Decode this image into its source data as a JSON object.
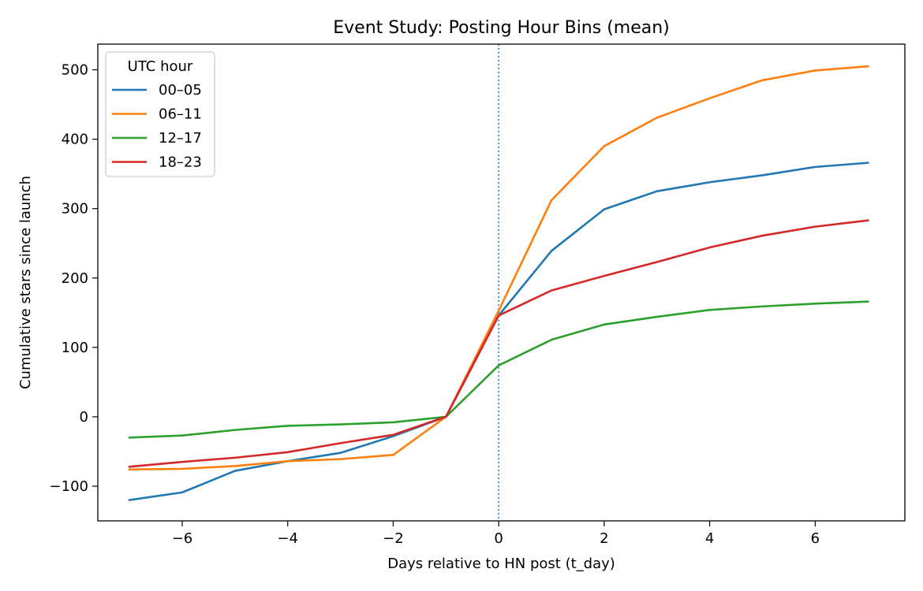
{
  "chart_data": {
    "type": "line",
    "title": "Event Study: Posting Hour Bins (mean)",
    "xlabel": "Days relative to HN post (t_day)",
    "ylabel": "Cumulative stars since launch",
    "xlim": [
      -7.6,
      7.7
    ],
    "ylim": [
      -150,
      537
    ],
    "xticks": [
      -6,
      -4,
      -2,
      0,
      2,
      4,
      6
    ],
    "xtick_labels": [
      "−6",
      "−4",
      "−2",
      "0",
      "2",
      "4",
      "6"
    ],
    "yticks": [
      -100,
      0,
      100,
      200,
      300,
      400,
      500
    ],
    "ytick_labels": [
      "−100",
      "0",
      "100",
      "200",
      "300",
      "400",
      "500"
    ],
    "grid": false,
    "legend": {
      "title": "UTC hour",
      "placement": "top-left"
    },
    "reference_line": {
      "x": 0,
      "style": "dotted",
      "color": "#1f77b4"
    },
    "x": [
      -7,
      -6,
      -5,
      -4,
      -3,
      -2,
      -1,
      0,
      1,
      2,
      3,
      4,
      5,
      6,
      7
    ],
    "series": [
      {
        "name": "00–05",
        "color": "#1f77b4",
        "values": [
          -120,
          -109,
          -78,
          -64,
          -52,
          -28,
          0,
          146,
          239,
          299,
          325,
          338,
          348,
          360,
          366
        ]
      },
      {
        "name": "06–11",
        "color": "#ff7f0e",
        "values": [
          -76,
          -75,
          -71,
          -64,
          -61,
          -55,
          0,
          153,
          312,
          390,
          431,
          459,
          485,
          499,
          505
        ]
      },
      {
        "name": "12–17",
        "color": "#2ca02c",
        "values": [
          -30,
          -27,
          -19,
          -13,
          -11,
          -8,
          0,
          74,
          111,
          133,
          144,
          154,
          159,
          163,
          166
        ]
      },
      {
        "name": "18–23",
        "color": "#d62728",
        "values": [
          -72,
          -65,
          -59,
          -51,
          -38,
          -26,
          0,
          146,
          182,
          203,
          223,
          244,
          261,
          274,
          283
        ]
      }
    ]
  }
}
